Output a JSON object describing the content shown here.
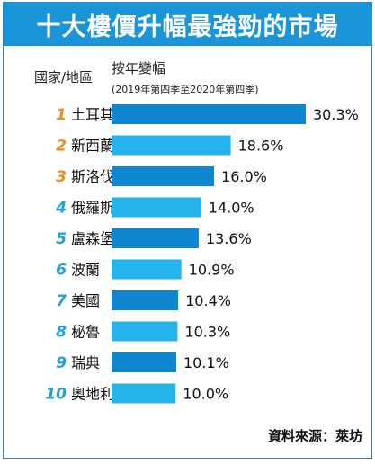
{
  "title": "十大樓價升幅最強勁的市場",
  "header": {
    "region_col": "國家/地區",
    "change_col": "按年變幅",
    "period": "(2019年第四季至2020年第四季)"
  },
  "source": "資料來源：萊坊",
  "colors": {
    "title_bg": "#1a95d9",
    "bar_dark": "#0f87d0",
    "bar_light": "#25b3ec",
    "rank_orange": "#f28a1a",
    "rank_blue": "#1f9fdc"
  },
  "chart_data": {
    "type": "bar",
    "orientation": "horizontal",
    "unit": "%",
    "categories": [
      "土耳其",
      "新西蘭",
      "斯洛伐克",
      "俄羅斯",
      "盧森堡",
      "波蘭",
      "美國",
      "秘魯",
      "瑞典",
      "奧地利"
    ],
    "ranks": [
      "1",
      "2",
      "3",
      "4",
      "5",
      "6",
      "7",
      "8",
      "9",
      "10"
    ],
    "values": [
      30.3,
      18.6,
      16.0,
      14.0,
      13.6,
      10.9,
      10.4,
      10.3,
      10.1,
      10.0
    ],
    "value_labels": [
      "30.3%",
      "18.6%",
      "16.0%",
      "14.0%",
      "13.6%",
      "10.9%",
      "10.4%",
      "10.3%",
      "10.1%",
      "10.0%"
    ],
    "xlabel": "按年變幅",
    "ylabel": "國家/地區",
    "xlim": [
      0,
      30.3
    ],
    "grid": false,
    "legend": "none"
  }
}
